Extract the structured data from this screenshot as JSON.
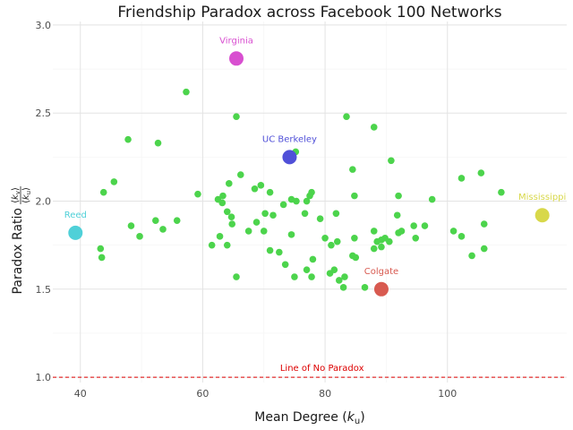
{
  "chart_data": {
    "type": "scatter",
    "title": "Friendship Paradox across Facebook 100 Networks",
    "xlabel": {
      "prefix": "Mean Degree (",
      "symbol": "k",
      "subscript": "u",
      "suffix": ")"
    },
    "ylabel": {
      "text": "Paradox Ratio ",
      "numerator": {
        "open": "⟨",
        "symbol": "k",
        "subscript": "v",
        "close": "⟩"
      },
      "denominator": {
        "open": "⟨",
        "symbol": "k",
        "subscript": "u",
        "close": "⟩"
      }
    },
    "xlim": [
      35.5,
      119.5
    ],
    "ylim": [
      0.97,
      3.02
    ],
    "x_ticks": [
      40,
      60,
      80,
      100
    ],
    "y_ticks": [
      1.0,
      1.5,
      2.0,
      2.5,
      3.0
    ],
    "x_tick_labels": [
      "40",
      "60",
      "80",
      "100"
    ],
    "y_tick_labels": [
      "1.0",
      "1.5",
      "2.0",
      "2.5",
      "3.0"
    ],
    "grid": true,
    "colors": {
      "points": "#4cd44c",
      "reference": "#dd0000",
      "grid_major": "#e3e3e3",
      "grid_minor": "#f3f3f3"
    },
    "reference_line": {
      "y": 1.0,
      "label": "Line of No Paradox",
      "label_x": 79.5
    },
    "highlighted": [
      {
        "name": "Virginia",
        "x": 65.5,
        "y": 2.81,
        "color": "#d84fd0"
      },
      {
        "name": "UC Berkeley",
        "x": 74.2,
        "y": 2.25,
        "color": "#5050d8"
      },
      {
        "name": "Mississippi",
        "x": 115.5,
        "y": 1.92,
        "color": "#d8d84a"
      },
      {
        "name": "Reed",
        "x": 39.2,
        "y": 1.82,
        "color": "#4fd0d8"
      },
      {
        "name": "Colgate",
        "x": 89.2,
        "y": 1.5,
        "color": "#d85a50"
      }
    ],
    "points": [
      [
        57.3,
        2.62
      ],
      [
        65.5,
        2.48
      ],
      [
        83.5,
        2.48
      ],
      [
        47.8,
        2.35
      ],
      [
        52.7,
        2.33
      ],
      [
        88.0,
        2.42
      ],
      [
        75.2,
        2.28
      ],
      [
        90.8,
        2.23
      ],
      [
        84.5,
        2.18
      ],
      [
        105.5,
        2.16
      ],
      [
        66.2,
        2.15
      ],
      [
        102.3,
        2.13
      ],
      [
        45.5,
        2.11
      ],
      [
        64.3,
        2.1
      ],
      [
        69.5,
        2.09
      ],
      [
        68.5,
        2.07
      ],
      [
        71.0,
        2.05
      ],
      [
        43.8,
        2.05
      ],
      [
        59.2,
        2.04
      ],
      [
        77.8,
        2.05
      ],
      [
        77.5,
        2.03
      ],
      [
        84.8,
        2.03
      ],
      [
        92.0,
        2.03
      ],
      [
        63.3,
        2.03
      ],
      [
        108.8,
        2.05
      ],
      [
        62.5,
        2.01
      ],
      [
        97.5,
        2.01
      ],
      [
        74.5,
        2.01
      ],
      [
        75.3,
        2.0
      ],
      [
        63.2,
        1.99
      ],
      [
        77.0,
        2.0
      ],
      [
        73.2,
        1.98
      ],
      [
        64.0,
        1.94
      ],
      [
        76.7,
        1.93
      ],
      [
        70.2,
        1.93
      ],
      [
        81.8,
        1.93
      ],
      [
        71.5,
        1.92
      ],
      [
        91.8,
        1.92
      ],
      [
        64.7,
        1.91
      ],
      [
        79.2,
        1.9
      ],
      [
        52.3,
        1.89
      ],
      [
        55.8,
        1.89
      ],
      [
        68.8,
        1.88
      ],
      [
        64.8,
        1.87
      ],
      [
        48.3,
        1.86
      ],
      [
        94.5,
        1.86
      ],
      [
        96.3,
        1.86
      ],
      [
        106.0,
        1.87
      ],
      [
        53.5,
        1.84
      ],
      [
        67.5,
        1.83
      ],
      [
        70.0,
        1.83
      ],
      [
        74.5,
        1.81
      ],
      [
        88.0,
        1.83
      ],
      [
        92.5,
        1.83
      ],
      [
        92.0,
        1.82
      ],
      [
        101.0,
        1.83
      ],
      [
        102.3,
        1.8
      ],
      [
        49.7,
        1.8
      ],
      [
        62.8,
        1.8
      ],
      [
        80.0,
        1.79
      ],
      [
        84.8,
        1.79
      ],
      [
        89.2,
        1.78
      ],
      [
        89.8,
        1.79
      ],
      [
        94.8,
        1.79
      ],
      [
        82.0,
        1.77
      ],
      [
        88.5,
        1.77
      ],
      [
        90.5,
        1.77
      ],
      [
        61.5,
        1.75
      ],
      [
        64.0,
        1.75
      ],
      [
        81.0,
        1.75
      ],
      [
        43.3,
        1.73
      ],
      [
        71.0,
        1.72
      ],
      [
        72.5,
        1.71
      ],
      [
        88.0,
        1.73
      ],
      [
        106.0,
        1.73
      ],
      [
        89.2,
        1.74
      ],
      [
        84.5,
        1.69
      ],
      [
        85.0,
        1.68
      ],
      [
        43.5,
        1.68
      ],
      [
        104.0,
        1.69
      ],
      [
        78.0,
        1.67
      ],
      [
        73.5,
        1.64
      ],
      [
        77.0,
        1.61
      ],
      [
        81.5,
        1.61
      ],
      [
        80.8,
        1.59
      ],
      [
        75.0,
        1.57
      ],
      [
        77.8,
        1.57
      ],
      [
        65.5,
        1.57
      ],
      [
        83.2,
        1.57
      ],
      [
        82.3,
        1.55
      ],
      [
        83.0,
        1.51
      ],
      [
        86.5,
        1.51
      ]
    ]
  }
}
